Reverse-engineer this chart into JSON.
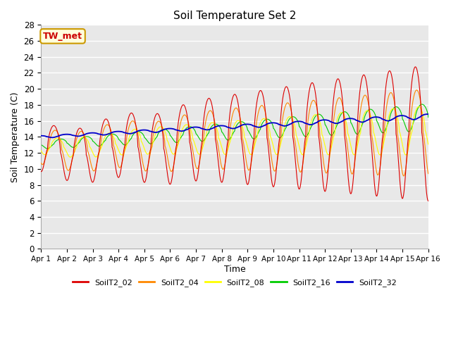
{
  "title": "Soil Temperature Set 2",
  "xlabel": "Time",
  "ylabel": "Soil Temperature (C)",
  "ylim": [
    0,
    28
  ],
  "yticks": [
    0,
    2,
    4,
    6,
    8,
    10,
    12,
    14,
    16,
    18,
    20,
    22,
    24,
    26,
    28
  ],
  "n_days": 15,
  "annotation_text": "TW_met",
  "annotation_color": "#cc0000",
  "annotation_bg": "#ffffdd",
  "annotation_border": "#cc9900",
  "series_colors": {
    "SoilT2_02": "#dd0000",
    "SoilT2_04": "#ff8800",
    "SoilT2_08": "#ffff00",
    "SoilT2_16": "#00cc00",
    "SoilT2_32": "#0000cc"
  },
  "bg_color": "#e8e8e8",
  "fig_bg": "#ffffff",
  "grid_color": "#ffffff"
}
